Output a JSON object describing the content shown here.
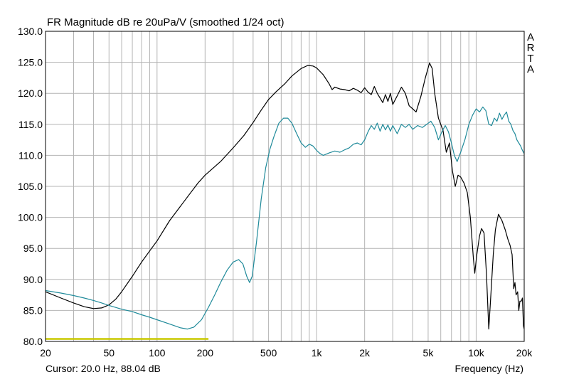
{
  "chart_data": {
    "type": "line",
    "title": "FR Magnitude dB re 20uPa/V (smoothed 1/24 oct)",
    "xlabel": "Frequency (Hz)",
    "ylabel": "",
    "xscale": "log",
    "xlim": [
      20,
      20000
    ],
    "ylim": [
      80,
      130
    ],
    "grid": true,
    "brand_letters": [
      "A",
      "R",
      "T",
      "A"
    ],
    "cursor_text": "Cursor: 20.0 Hz, 88.04 dB",
    "x_ticks": [
      {
        "value": 20,
        "label": "20"
      },
      {
        "value": 50,
        "label": "50"
      },
      {
        "value": 100,
        "label": "100"
      },
      {
        "value": 200,
        "label": "200"
      },
      {
        "value": 500,
        "label": "500"
      },
      {
        "value": 1000,
        "label": "1k"
      },
      {
        "value": 2000,
        "label": "2k"
      },
      {
        "value": 5000,
        "label": "5k"
      },
      {
        "value": 10000,
        "label": "10k"
      },
      {
        "value": 20000,
        "label": "20k"
      }
    ],
    "y_ticks": [
      {
        "value": 80,
        "label": "80.0"
      },
      {
        "value": 85,
        "label": "85.0"
      },
      {
        "value": 90,
        "label": "90.0"
      },
      {
        "value": 95,
        "label": "95.0"
      },
      {
        "value": 100,
        "label": "100.0"
      },
      {
        "value": 105,
        "label": "105.0"
      },
      {
        "value": 110,
        "label": "110.0"
      },
      {
        "value": 115,
        "label": "115.0"
      },
      {
        "value": 120,
        "label": "120.0"
      },
      {
        "value": 125,
        "label": "125.0"
      },
      {
        "value": 130,
        "label": "130.0"
      }
    ],
    "series": [
      {
        "color": "#000000",
        "points": [
          [
            20,
            88.0
          ],
          [
            25,
            87.0
          ],
          [
            30,
            86.2
          ],
          [
            35,
            85.6
          ],
          [
            40,
            85.3
          ],
          [
            45,
            85.4
          ],
          [
            50,
            85.9
          ],
          [
            55,
            86.8
          ],
          [
            60,
            88.0
          ],
          [
            70,
            90.5
          ],
          [
            80,
            92.8
          ],
          [
            90,
            94.6
          ],
          [
            100,
            96.2
          ],
          [
            120,
            99.5
          ],
          [
            150,
            102.8
          ],
          [
            180,
            105.5
          ],
          [
            200,
            106.8
          ],
          [
            250,
            109.0
          ],
          [
            300,
            111.2
          ],
          [
            350,
            113.2
          ],
          [
            400,
            115.3
          ],
          [
            450,
            117.3
          ],
          [
            500,
            119.0
          ],
          [
            560,
            120.3
          ],
          [
            630,
            121.5
          ],
          [
            700,
            122.8
          ],
          [
            800,
            124.0
          ],
          [
            880,
            124.5
          ],
          [
            950,
            124.4
          ],
          [
            1000,
            124.1
          ],
          [
            1100,
            123.0
          ],
          [
            1200,
            121.5
          ],
          [
            1250,
            120.6
          ],
          [
            1300,
            121.0
          ],
          [
            1400,
            120.7
          ],
          [
            1500,
            120.6
          ],
          [
            1600,
            120.4
          ],
          [
            1700,
            120.8
          ],
          [
            1800,
            120.5
          ],
          [
            1900,
            120.1
          ],
          [
            2000,
            120.9
          ],
          [
            2100,
            120.2
          ],
          [
            2200,
            119.8
          ],
          [
            2300,
            121.1
          ],
          [
            2400,
            120.0
          ],
          [
            2600,
            118.5
          ],
          [
            2700,
            119.8
          ],
          [
            2800,
            118.7
          ],
          [
            2900,
            120.0
          ],
          [
            3000,
            118.2
          ],
          [
            3200,
            119.6
          ],
          [
            3400,
            121.0
          ],
          [
            3600,
            120.0
          ],
          [
            3800,
            118.0
          ],
          [
            4000,
            117.5
          ],
          [
            4200,
            117.0
          ],
          [
            4500,
            119.5
          ],
          [
            4800,
            122.5
          ],
          [
            5100,
            124.9
          ],
          [
            5300,
            124.0
          ],
          [
            5500,
            120.0
          ],
          [
            5800,
            116.0
          ],
          [
            6200,
            114.0
          ],
          [
            6500,
            110.5
          ],
          [
            6800,
            112.0
          ],
          [
            7100,
            107.5
          ],
          [
            7400,
            105.0
          ],
          [
            7700,
            106.8
          ],
          [
            8000,
            106.5
          ],
          [
            8400,
            105.5
          ],
          [
            8800,
            104.0
          ],
          [
            9200,
            100.0
          ],
          [
            9600,
            93.5
          ],
          [
            9800,
            91.0
          ],
          [
            10100,
            94.0
          ],
          [
            10500,
            97.0
          ],
          [
            10800,
            98.2
          ],
          [
            11200,
            97.5
          ],
          [
            11600,
            91.0
          ],
          [
            12000,
            82.0
          ],
          [
            12400,
            88.0
          ],
          [
            12800,
            94.0
          ],
          [
            13200,
            98.0
          ],
          [
            13800,
            100.5
          ],
          [
            14500,
            99.5
          ],
          [
            15200,
            98.0
          ],
          [
            15800,
            96.5
          ],
          [
            16300,
            95.5
          ],
          [
            16800,
            94.0
          ],
          [
            17200,
            88.5
          ],
          [
            17500,
            89.5
          ],
          [
            17800,
            87.5
          ],
          [
            18200,
            88.0
          ],
          [
            18500,
            85.0
          ],
          [
            18800,
            86.5
          ],
          [
            19200,
            86.5
          ],
          [
            19500,
            87.0
          ],
          [
            19800,
            82.5
          ],
          [
            20000,
            82.0
          ]
        ]
      },
      {
        "color": "#1f8a9a",
        "points": [
          [
            20,
            88.2
          ],
          [
            25,
            87.8
          ],
          [
            30,
            87.4
          ],
          [
            35,
            87.0
          ],
          [
            40,
            86.6
          ],
          [
            45,
            86.2
          ],
          [
            50,
            85.8
          ],
          [
            60,
            85.2
          ],
          [
            70,
            84.8
          ],
          [
            80,
            84.3
          ],
          [
            90,
            83.9
          ],
          [
            100,
            83.5
          ],
          [
            120,
            82.8
          ],
          [
            140,
            82.2
          ],
          [
            155,
            82.0
          ],
          [
            170,
            82.3
          ],
          [
            190,
            83.5
          ],
          [
            210,
            85.5
          ],
          [
            230,
            87.5
          ],
          [
            250,
            89.5
          ],
          [
            275,
            91.5
          ],
          [
            300,
            92.8
          ],
          [
            325,
            93.2
          ],
          [
            345,
            92.5
          ],
          [
            365,
            90.5
          ],
          [
            380,
            89.5
          ],
          [
            395,
            90.5
          ],
          [
            420,
            96.0
          ],
          [
            450,
            103.0
          ],
          [
            480,
            108.0
          ],
          [
            510,
            111.0
          ],
          [
            540,
            113.0
          ],
          [
            580,
            115.2
          ],
          [
            620,
            116.0
          ],
          [
            660,
            116.0
          ],
          [
            700,
            115.2
          ],
          [
            750,
            113.5
          ],
          [
            800,
            112.0
          ],
          [
            850,
            111.3
          ],
          [
            900,
            111.8
          ],
          [
            950,
            111.5
          ],
          [
            1000,
            110.8
          ],
          [
            1050,
            110.3
          ],
          [
            1100,
            110.0
          ],
          [
            1200,
            110.4
          ],
          [
            1300,
            110.7
          ],
          [
            1400,
            110.5
          ],
          [
            1500,
            110.9
          ],
          [
            1600,
            111.2
          ],
          [
            1700,
            111.8
          ],
          [
            1800,
            112.0
          ],
          [
            1900,
            111.7
          ],
          [
            2000,
            112.5
          ],
          [
            2100,
            113.8
          ],
          [
            2200,
            114.8
          ],
          [
            2300,
            114.2
          ],
          [
            2400,
            115.2
          ],
          [
            2500,
            113.9
          ],
          [
            2600,
            115.0
          ],
          [
            2700,
            114.1
          ],
          [
            2800,
            114.9
          ],
          [
            2900,
            113.9
          ],
          [
            3000,
            114.8
          ],
          [
            3200,
            113.5
          ],
          [
            3400,
            115.0
          ],
          [
            3600,
            114.5
          ],
          [
            3800,
            115.0
          ],
          [
            4000,
            114.2
          ],
          [
            4300,
            114.8
          ],
          [
            4600,
            114.5
          ],
          [
            4900,
            115.0
          ],
          [
            5200,
            115.5
          ],
          [
            5500,
            114.5
          ],
          [
            5800,
            112.5
          ],
          [
            6100,
            113.8
          ],
          [
            6400,
            114.8
          ],
          [
            6700,
            113.8
          ],
          [
            7000,
            112.0
          ],
          [
            7300,
            110.0
          ],
          [
            7600,
            109.0
          ],
          [
            8000,
            110.5
          ],
          [
            8500,
            112.5
          ],
          [
            9000,
            115.0
          ],
          [
            9500,
            116.5
          ],
          [
            10000,
            117.5
          ],
          [
            10500,
            117.0
          ],
          [
            11000,
            117.8
          ],
          [
            11500,
            117.2
          ],
          [
            12000,
            115.0
          ],
          [
            12500,
            114.8
          ],
          [
            13000,
            116.0
          ],
          [
            13500,
            115.5
          ],
          [
            14000,
            116.8
          ],
          [
            14500,
            115.8
          ],
          [
            15000,
            116.5
          ],
          [
            15500,
            117.0
          ],
          [
            16000,
            115.5
          ],
          [
            16500,
            115.0
          ],
          [
            17000,
            114.0
          ],
          [
            17500,
            113.5
          ],
          [
            18000,
            112.5
          ],
          [
            18500,
            112.0
          ],
          [
            19000,
            111.5
          ],
          [
            19500,
            110.8
          ],
          [
            20000,
            110.3
          ]
        ]
      },
      {
        "color": "#c8c800",
        "points": [
          [
            20,
            80.4
          ],
          [
            210,
            80.4
          ]
        ]
      }
    ]
  }
}
